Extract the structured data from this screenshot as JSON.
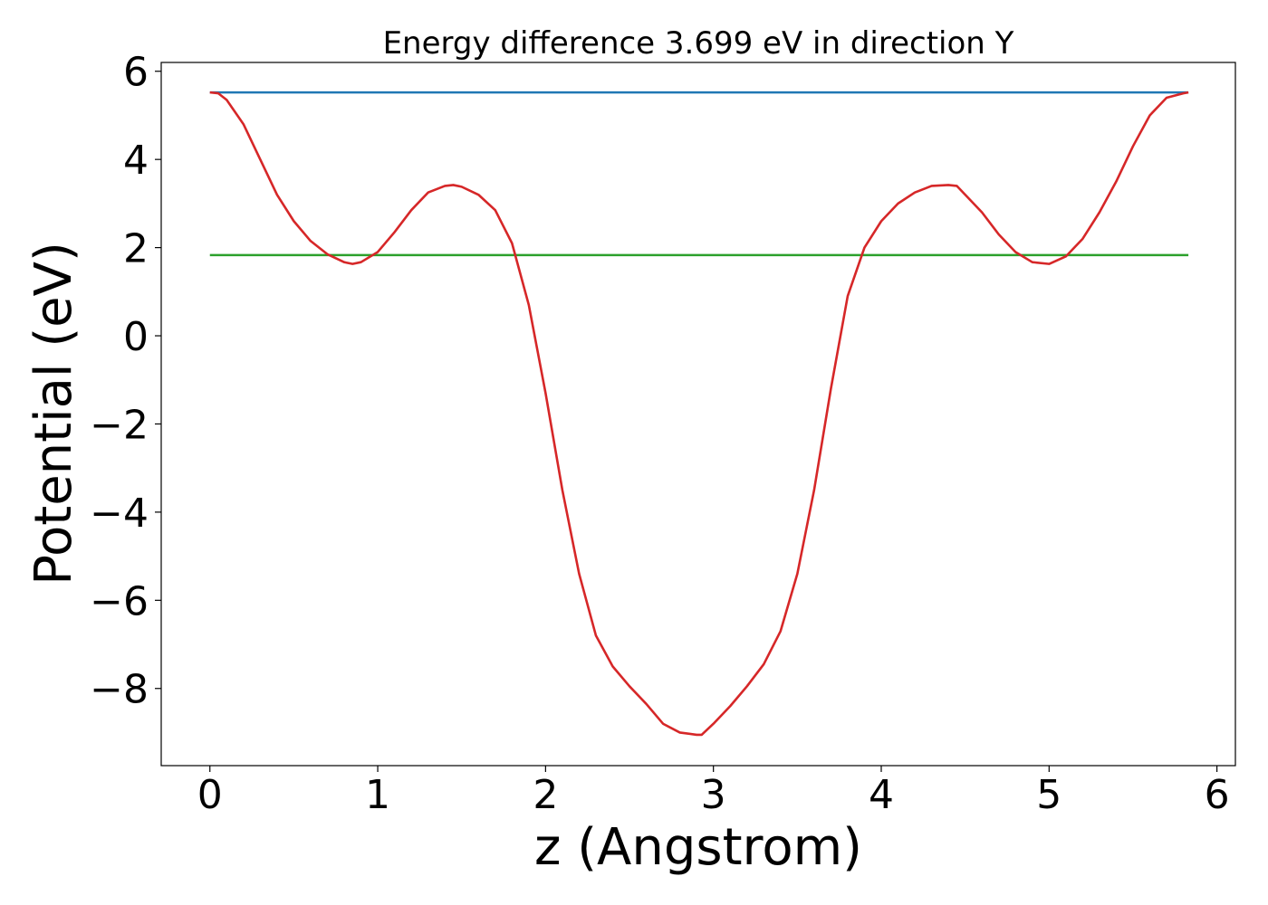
{
  "chart_data": {
    "type": "line",
    "title": "Energy difference 3.699 eV in direction Y",
    "xlabel": "z (Angstrom)",
    "ylabel": "Potential (eV)",
    "xlim": [
      -0.29,
      6.11
    ],
    "ylim": [
      -9.75,
      6.2
    ],
    "xticks": [
      0,
      1,
      2,
      3,
      4,
      5,
      6
    ],
    "yticks": [
      -8,
      -6,
      -4,
      -2,
      0,
      2,
      4,
      6
    ],
    "grid": false,
    "legend": "none",
    "series": [
      {
        "color": "#1f77b4",
        "x": [
          0,
          5.83
        ],
        "y": [
          5.52,
          5.52
        ]
      },
      {
        "color": "#2ca02c",
        "x": [
          0,
          5.83
        ],
        "y": [
          1.83,
          1.83
        ]
      },
      {
        "color": "#d62728",
        "x": [
          0,
          0.05,
          0.1,
          0.2,
          0.3,
          0.4,
          0.5,
          0.6,
          0.7,
          0.8,
          0.85,
          0.9,
          1.0,
          1.1,
          1.2,
          1.3,
          1.4,
          1.45,
          1.5,
          1.6,
          1.7,
          1.8,
          1.9,
          2.0,
          2.1,
          2.2,
          2.3,
          2.4,
          2.5,
          2.6,
          2.7,
          2.8,
          2.9,
          2.93,
          3.0,
          3.1,
          3.2,
          3.3,
          3.4,
          3.5,
          3.6,
          3.7,
          3.8,
          3.9,
          4.0,
          4.1,
          4.2,
          4.3,
          4.4,
          4.45,
          4.5,
          4.6,
          4.7,
          4.8,
          4.9,
          5.0,
          5.1,
          5.2,
          5.3,
          5.4,
          5.5,
          5.6,
          5.7,
          5.8,
          5.83
        ],
        "y": [
          5.52,
          5.5,
          5.35,
          4.8,
          4.0,
          3.2,
          2.6,
          2.15,
          1.85,
          1.67,
          1.63,
          1.67,
          1.9,
          2.35,
          2.85,
          3.25,
          3.4,
          3.42,
          3.38,
          3.2,
          2.85,
          2.1,
          0.7,
          -1.3,
          -3.5,
          -5.4,
          -6.8,
          -7.5,
          -7.95,
          -8.35,
          -8.8,
          -9.0,
          -9.05,
          -9.05,
          -8.8,
          -8.4,
          -7.95,
          -7.45,
          -6.7,
          -5.4,
          -3.5,
          -1.2,
          0.9,
          2.0,
          2.6,
          3.0,
          3.25,
          3.4,
          3.42,
          3.4,
          3.2,
          2.8,
          2.3,
          1.9,
          1.67,
          1.63,
          1.8,
          2.2,
          2.8,
          3.5,
          4.3,
          5.0,
          5.4,
          5.5,
          5.52
        ]
      }
    ]
  }
}
